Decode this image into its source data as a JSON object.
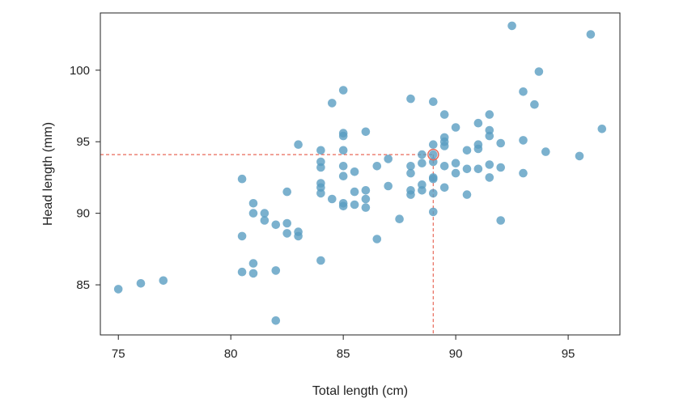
{
  "chart_data": {
    "type": "scatter",
    "xlabel": "Total length (cm)",
    "ylabel": "Head length (mm)",
    "xlim": [
      74.2,
      97.3
    ],
    "ylim": [
      81.5,
      104.0
    ],
    "xticks": [
      75,
      80,
      85,
      90,
      95
    ],
    "yticks": [
      85,
      90,
      95,
      100
    ],
    "grid": false,
    "legend": "none",
    "colors": {
      "points": "#5a9ec2",
      "highlight": "#e8695a",
      "guide": "#e8695a"
    },
    "highlight": {
      "x": 89.0,
      "y": 94.1
    },
    "series": [
      {
        "points": [
          [
            75,
            84.7
          ],
          [
            76,
            85.1
          ],
          [
            77,
            85.3
          ],
          [
            80.5,
            92.4
          ],
          [
            80.5,
            88.4
          ],
          [
            80.5,
            85.9
          ],
          [
            81,
            90.7
          ],
          [
            81,
            90.0
          ],
          [
            81,
            86.5
          ],
          [
            81,
            85.8
          ],
          [
            81.5,
            90.0
          ],
          [
            81.5,
            89.5
          ],
          [
            82,
            89.2
          ],
          [
            82,
            86.0
          ],
          [
            82,
            82.5
          ],
          [
            82.5,
            91.5
          ],
          [
            82.5,
            89.3
          ],
          [
            82.5,
            88.6
          ],
          [
            83,
            94.8
          ],
          [
            83,
            88.7
          ],
          [
            83,
            88.4
          ],
          [
            84,
            94.4
          ],
          [
            84,
            93.6
          ],
          [
            84,
            93.2
          ],
          [
            84,
            92.1
          ],
          [
            84,
            91.8
          ],
          [
            84,
            91.4
          ],
          [
            84,
            86.7
          ],
          [
            84.5,
            97.7
          ],
          [
            84.5,
            91.0
          ],
          [
            85,
            98.6
          ],
          [
            85,
            95.6
          ],
          [
            85,
            95.4
          ],
          [
            85,
            94.4
          ],
          [
            85,
            93.3
          ],
          [
            85,
            92.6
          ],
          [
            85,
            90.7
          ],
          [
            85,
            90.5
          ],
          [
            85.5,
            92.9
          ],
          [
            85.5,
            91.5
          ],
          [
            85.5,
            90.6
          ],
          [
            86,
            95.7
          ],
          [
            86,
            91.6
          ],
          [
            86,
            91.0
          ],
          [
            86,
            90.4
          ],
          [
            86.5,
            93.3
          ],
          [
            86.5,
            88.2
          ],
          [
            87,
            93.8
          ],
          [
            87,
            91.9
          ],
          [
            87.5,
            89.6
          ],
          [
            88,
            98.0
          ],
          [
            88,
            93.3
          ],
          [
            88,
            92.8
          ],
          [
            88,
            91.6
          ],
          [
            88,
            91.3
          ],
          [
            88.5,
            94.1
          ],
          [
            88.5,
            93.5
          ],
          [
            88.5,
            92.0
          ],
          [
            88.5,
            91.6
          ],
          [
            89,
            97.8
          ],
          [
            89,
            94.8
          ],
          [
            89,
            94.1
          ],
          [
            89,
            93.6
          ],
          [
            89,
            92.5
          ],
          [
            89,
            92.4
          ],
          [
            89,
            91.4
          ],
          [
            89,
            90.1
          ],
          [
            89.5,
            96.9
          ],
          [
            89.5,
            95.3
          ],
          [
            89.5,
            95.0
          ],
          [
            89.5,
            94.7
          ],
          [
            89.5,
            93.3
          ],
          [
            89.5,
            91.8
          ],
          [
            90,
            96.0
          ],
          [
            90,
            93.5
          ],
          [
            90,
            92.8
          ],
          [
            90.5,
            94.4
          ],
          [
            90.5,
            93.1
          ],
          [
            90.5,
            91.3
          ],
          [
            91,
            96.3
          ],
          [
            91,
            94.8
          ],
          [
            91,
            94.5
          ],
          [
            91,
            93.1
          ],
          [
            91.5,
            96.9
          ],
          [
            91.5,
            95.8
          ],
          [
            91.5,
            95.4
          ],
          [
            91.5,
            93.4
          ],
          [
            91.5,
            92.5
          ],
          [
            92,
            94.9
          ],
          [
            92,
            93.2
          ],
          [
            92,
            89.5
          ],
          [
            92.5,
            103.1
          ],
          [
            93,
            98.5
          ],
          [
            93,
            95.1
          ],
          [
            93,
            92.8
          ],
          [
            93.5,
            97.6
          ],
          [
            93.7,
            99.9
          ],
          [
            94,
            94.3
          ],
          [
            95.5,
            94.0
          ],
          [
            96,
            102.5
          ],
          [
            96.5,
            95.9
          ]
        ]
      }
    ]
  }
}
